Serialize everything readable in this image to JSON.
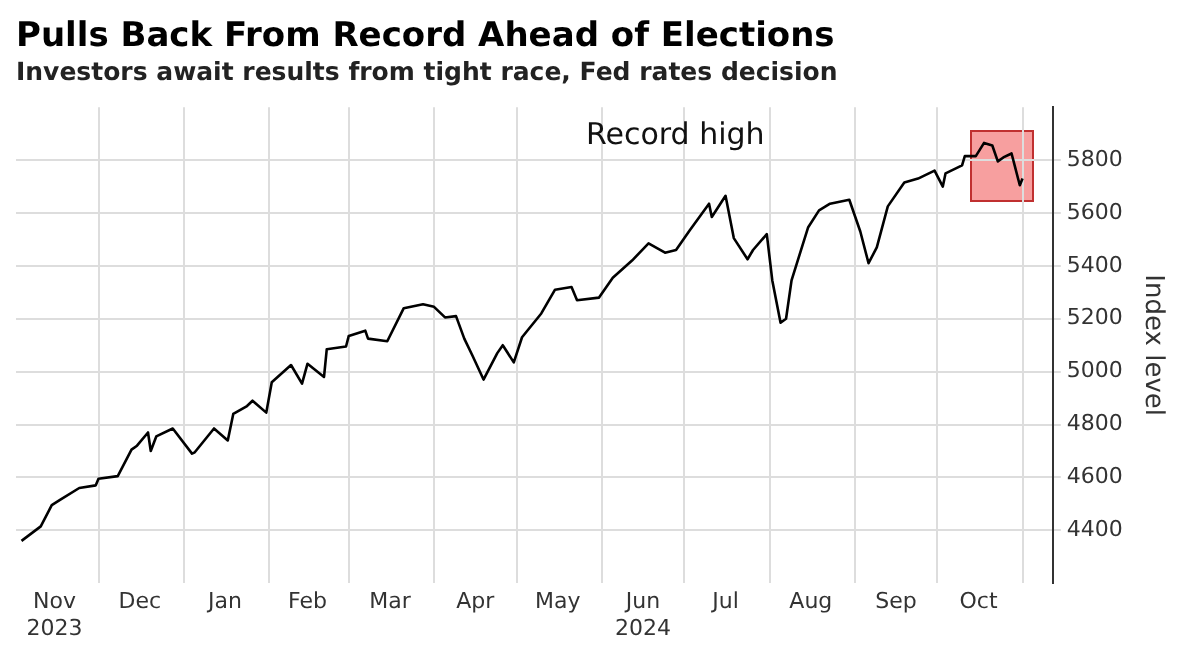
{
  "chart_data": {
    "type": "line",
    "title": "Pulls Back From Record Ahead of Elections",
    "subtitle": "Investors await results from tight race, Fed rates decision",
    "ylabel": "Index level",
    "annotations": [
      "Record high"
    ],
    "x": [
      "2023-11-03",
      "2023-11-10",
      "2023-11-14",
      "2023-11-17",
      "2023-11-24",
      "2023-11-30",
      "2023-12-01",
      "2023-12-08",
      "2023-12-13",
      "2023-12-15",
      "2023-12-19",
      "2023-12-20",
      "2023-12-22",
      "2023-12-28",
      "2024-01-04",
      "2024-01-05",
      "2024-01-12",
      "2024-01-17",
      "2024-01-19",
      "2024-01-24",
      "2024-01-26",
      "2024-01-31",
      "2024-02-02",
      "2024-02-09",
      "2024-02-13",
      "2024-02-15",
      "2024-02-21",
      "2024-02-22",
      "2024-02-29",
      "2024-03-01",
      "2024-03-07",
      "2024-03-08",
      "2024-03-15",
      "2024-03-21",
      "2024-03-28",
      "2024-04-01",
      "2024-04-05",
      "2024-04-09",
      "2024-04-12",
      "2024-04-15",
      "2024-04-19",
      "2024-04-24",
      "2024-04-26",
      "2024-04-30",
      "2024-05-03",
      "2024-05-10",
      "2024-05-15",
      "2024-05-21",
      "2024-05-23",
      "2024-05-31",
      "2024-06-05",
      "2024-06-12",
      "2024-06-18",
      "2024-06-24",
      "2024-06-28",
      "2024-07-03",
      "2024-07-10",
      "2024-07-11",
      "2024-07-16",
      "2024-07-19",
      "2024-07-24",
      "2024-07-26",
      "2024-07-31",
      "2024-08-02",
      "2024-08-05",
      "2024-08-07",
      "2024-08-09",
      "2024-08-15",
      "2024-08-19",
      "2024-08-23",
      "2024-08-30",
      "2024-09-03",
      "2024-09-06",
      "2024-09-09",
      "2024-09-13",
      "2024-09-19",
      "2024-09-24",
      "2024-09-30",
      "2024-10-03",
      "2024-10-04",
      "2024-10-10",
      "2024-10-11",
      "2024-10-15",
      "2024-10-18",
      "2024-10-21",
      "2024-10-23",
      "2024-10-25",
      "2024-10-28",
      "2024-10-31",
      "2024-11-01"
    ],
    "series": [
      {
        "color": "#000000",
        "values": [
          4360,
          4415,
          4495,
          4515,
          4560,
          4570,
          4595,
          4605,
          4705,
          4720,
          4770,
          4700,
          4755,
          4785,
          4690,
          4695,
          4785,
          4740,
          4840,
          4870,
          4890,
          4845,
          4960,
          5025,
          4955,
          5030,
          4980,
          5085,
          5095,
          5135,
          5155,
          5125,
          5115,
          5240,
          5255,
          5245,
          5205,
          5210,
          5125,
          5060,
          4970,
          5070,
          5100,
          5035,
          5130,
          5220,
          5310,
          5320,
          5270,
          5280,
          5355,
          5420,
          5485,
          5450,
          5460,
          5535,
          5635,
          5585,
          5665,
          5505,
          5425,
          5460,
          5520,
          5345,
          5185,
          5200,
          5345,
          5545,
          5610,
          5635,
          5650,
          5530,
          5410,
          5470,
          5625,
          5715,
          5730,
          5760,
          5700,
          5750,
          5780,
          5815,
          5815,
          5865,
          5855,
          5795,
          5810,
          5825,
          5705,
          5730
        ]
      }
    ],
    "xlim": [
      "2023-11-01",
      "2024-11-12"
    ],
    "xticks": [
      {
        "value": "2023-11-15",
        "label": "Nov\n2023"
      },
      {
        "value": "2023-12-01",
        "label": null
      },
      {
        "value": "2023-12-16",
        "label": "Dec"
      },
      {
        "value": "2024-01-01",
        "label": null
      },
      {
        "value": "2024-01-16",
        "label": "Jan"
      },
      {
        "value": "2024-02-01",
        "label": null
      },
      {
        "value": "2024-02-15",
        "label": "Feb"
      },
      {
        "value": "2024-03-01",
        "label": null
      },
      {
        "value": "2024-03-16",
        "label": "Mar"
      },
      {
        "value": "2024-04-01",
        "label": null
      },
      {
        "value": "2024-04-16",
        "label": "Apr"
      },
      {
        "value": "2024-05-01",
        "label": null
      },
      {
        "value": "2024-05-16",
        "label": "May"
      },
      {
        "value": "2024-06-01",
        "label": null
      },
      {
        "value": "2024-06-16",
        "label": "Jun\n2024"
      },
      {
        "value": "2024-07-01",
        "label": null
      },
      {
        "value": "2024-07-16",
        "label": "Jul"
      },
      {
        "value": "2024-08-01",
        "label": null
      },
      {
        "value": "2024-08-16",
        "label": "Aug"
      },
      {
        "value": "2024-09-01",
        "label": null
      },
      {
        "value": "2024-09-16",
        "label": "Sep"
      },
      {
        "value": "2024-10-01",
        "label": null
      },
      {
        "value": "2024-10-16",
        "label": "Oct"
      },
      {
        "value": "2024-11-01",
        "label": null
      }
    ],
    "ylim": [
      4200,
      6000
    ],
    "yticks": [
      4400,
      4600,
      4800,
      5000,
      5200,
      5400,
      5600,
      5800
    ],
    "grid": true,
    "legend": false,
    "marker": "none",
    "line_style": "solid"
  }
}
